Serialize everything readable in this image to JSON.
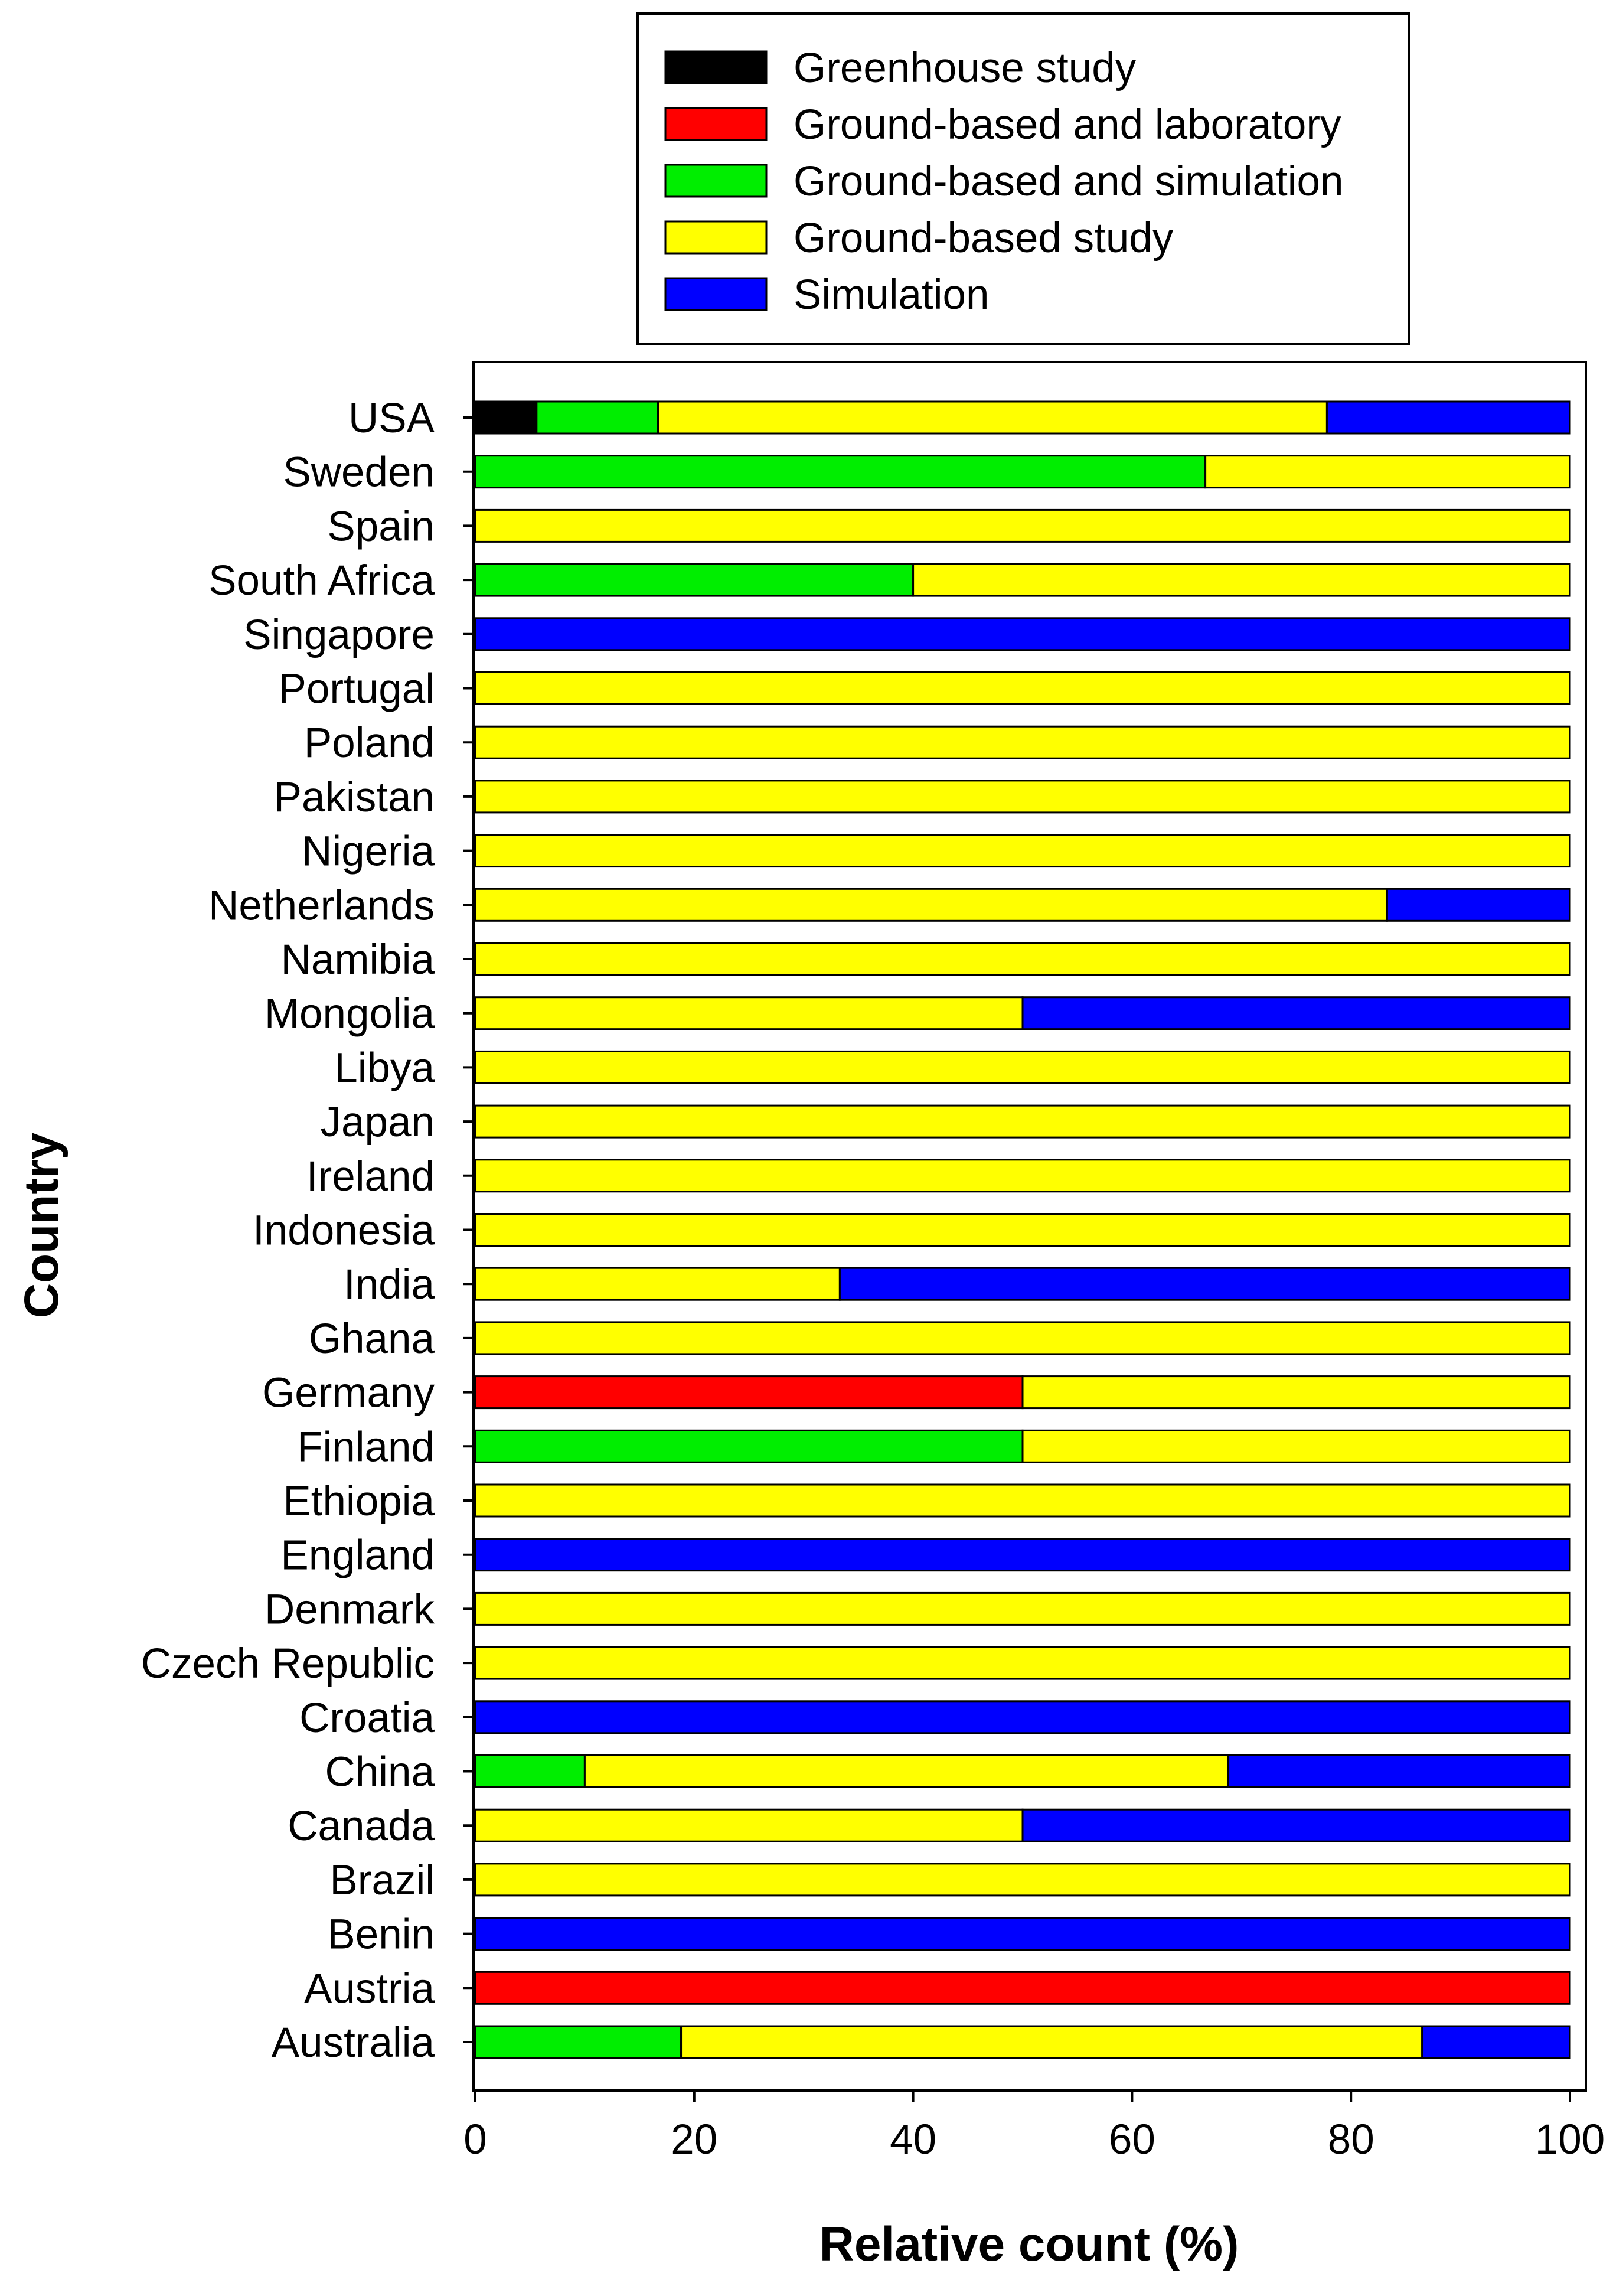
{
  "chart_data": {
    "type": "bar",
    "orientation": "horizontal",
    "stacked": true,
    "xlabel": "Relative count (%)",
    "ylabel": "Country",
    "xlim": [
      0,
      100
    ],
    "xticks": [
      "0",
      "20",
      "40",
      "60",
      "80",
      "100"
    ],
    "legend_position": "top",
    "categories": [
      "USA",
      "Sweden",
      "Spain",
      "South Africa",
      "Singapore",
      "Portugal",
      "Poland",
      "Pakistan",
      "Nigeria",
      "Netherlands",
      "Namibia",
      "Mongolia",
      "Libya",
      "Japan",
      "Ireland",
      "Indonesia",
      "India",
      "Ghana",
      "Germany",
      "Finland",
      "Ethiopia",
      "England",
      "Denmark",
      "Czech Republic",
      "Croatia",
      "China",
      "Canada",
      "Brazil",
      "Benin",
      "Austria",
      "Australia"
    ],
    "series": [
      {
        "name": "Greenhouse study",
        "color": "#000000",
        "values": [
          5.6,
          0,
          0,
          0,
          0,
          0,
          0,
          0,
          0,
          0,
          0,
          0,
          0,
          0,
          0,
          0,
          0,
          0,
          0,
          0,
          0,
          0,
          0,
          0,
          0,
          0,
          0,
          0,
          0,
          0,
          0
        ]
      },
      {
        "name": "Ground-based and laboratory",
        "color": "#ff0000",
        "values": [
          0,
          0,
          0,
          0,
          0,
          0,
          0,
          0,
          0,
          0,
          0,
          0,
          0,
          0,
          0,
          0,
          0,
          0,
          50,
          0,
          0,
          0,
          0,
          0,
          0,
          0,
          0,
          0,
          0,
          100,
          0
        ]
      },
      {
        "name": "Ground-based and simulation",
        "color": "#00ee00",
        "values": [
          11.1,
          66.7,
          0,
          40,
          0,
          0,
          0,
          0,
          0,
          0,
          0,
          0,
          0,
          0,
          0,
          0,
          0,
          0,
          0,
          50,
          0,
          0,
          0,
          0,
          0,
          10,
          0,
          0,
          0,
          0,
          18.8
        ]
      },
      {
        "name": "Ground-based study",
        "color": "#ffff00",
        "values": [
          61.1,
          33.3,
          100,
          60,
          0,
          100,
          100,
          100,
          100,
          83.3,
          100,
          50,
          100,
          100,
          100,
          100,
          33.3,
          100,
          50,
          50,
          100,
          0,
          100,
          100,
          0,
          58.8,
          50,
          100,
          0,
          0,
          67.7
        ]
      },
      {
        "name": "Simulation",
        "color": "#0000ff",
        "values": [
          22.2,
          0,
          0,
          0,
          100,
          0,
          0,
          0,
          0,
          16.7,
          0,
          50,
          0,
          0,
          0,
          0,
          66.7,
          0,
          0,
          0,
          0,
          100,
          0,
          0,
          100,
          31.2,
          50,
          0,
          100,
          0,
          13.5
        ]
      }
    ]
  }
}
